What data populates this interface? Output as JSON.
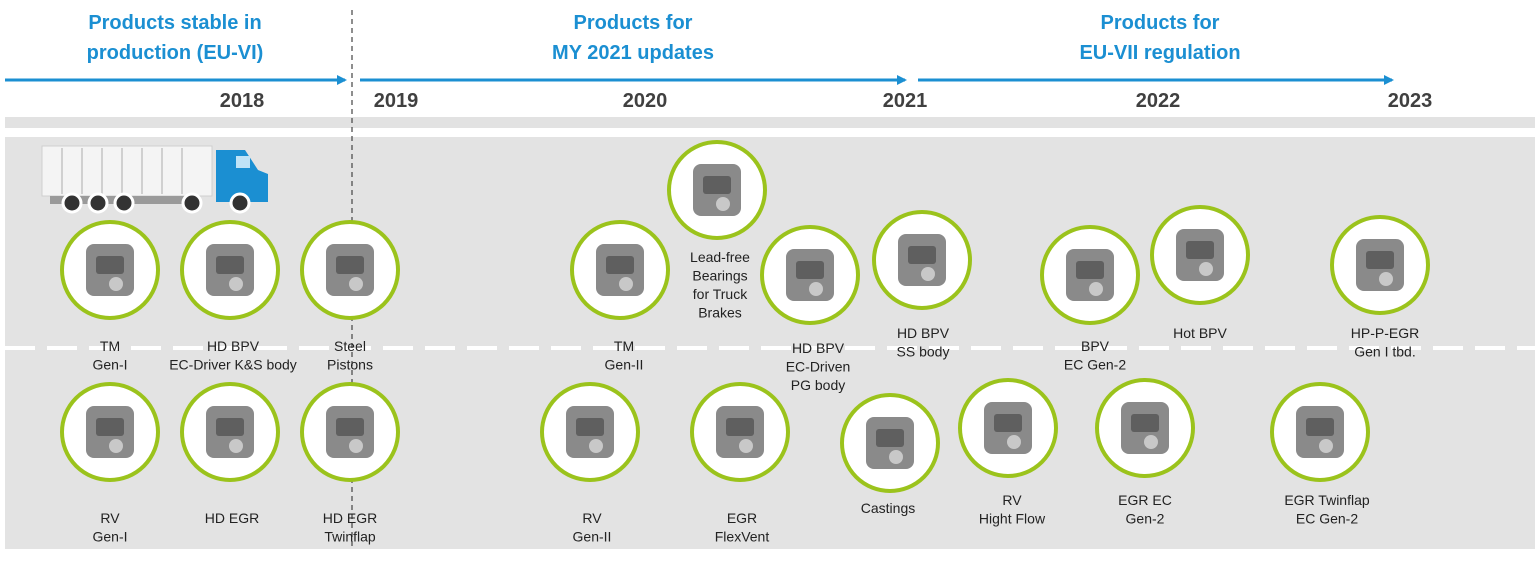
{
  "phases": [
    {
      "lines": [
        "Products stable in",
        "production (EU-VI)"
      ]
    },
    {
      "lines": [
        "Products for",
        "MY 2021 updates"
      ]
    },
    {
      "lines": [
        "Products for",
        "EU-VII regulation"
      ]
    }
  ],
  "years": [
    "2018",
    "2019",
    "2020",
    "2021",
    "2022",
    "2023"
  ],
  "products": [
    {
      "lines": [
        "TM",
        "Gen-I"
      ]
    },
    {
      "lines": [
        "HD BPV",
        "EC-Driver K&S body"
      ]
    },
    {
      "lines": [
        "Steel",
        "Pistons"
      ]
    },
    {
      "lines": [
        "RV",
        "Gen-I"
      ]
    },
    {
      "lines": [
        "HD EGR"
      ]
    },
    {
      "lines": [
        "HD EGR",
        "Twinflap"
      ]
    },
    {
      "lines": [
        "TM",
        "Gen-II"
      ]
    },
    {
      "lines": [
        "Lead-free",
        "Bearings",
        "for Truck",
        "Brakes"
      ]
    },
    {
      "lines": [
        "HD BPV",
        "EC-Driven",
        "PG body"
      ]
    },
    {
      "lines": [
        "HD BPV",
        "SS body"
      ]
    },
    {
      "lines": [
        "BPV",
        "EC Gen-2"
      ]
    },
    {
      "lines": [
        "Hot BPV"
      ]
    },
    {
      "lines": [
        "HP-P-EGR",
        "Gen I tbd."
      ]
    },
    {
      "lines": [
        "RV",
        "Gen-II"
      ]
    },
    {
      "lines": [
        "EGR",
        "FlexVent"
      ]
    },
    {
      "lines": [
        "Castings"
      ]
    },
    {
      "lines": [
        "RV",
        "Hight Flow"
      ]
    },
    {
      "lines": [
        "EGR EC",
        "Gen-2"
      ]
    },
    {
      "lines": [
        "EGR Twinflap",
        "EC Gen-2"
      ]
    }
  ]
}
